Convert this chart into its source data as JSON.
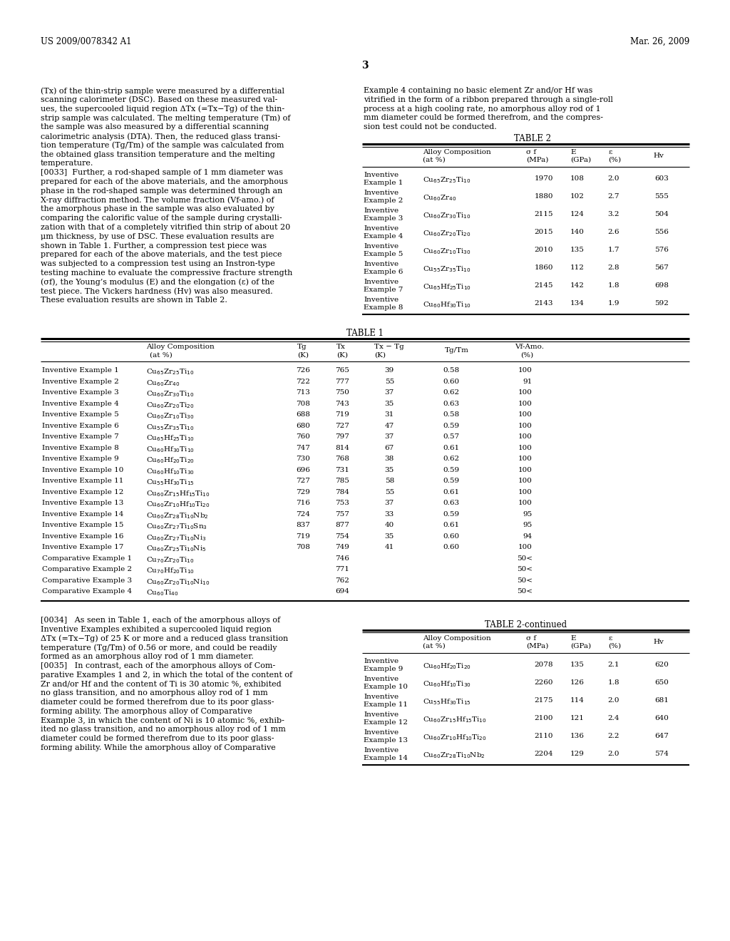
{
  "header_left": "US 2009/0078342 A1",
  "header_right": "Mar. 26, 2009",
  "page_number": "3",
  "background_color": "#ffffff",
  "left_column_text": [
    "(Tx) of the thin-strip sample were measured by a differential",
    "scanning calorimeter (DSC). Based on these measured val-",
    "ues, the supercooled liquid region ΔTx (=Tx−Tg) of the thin-",
    "strip sample was calculated. The melting temperature (Tm) of",
    "the sample was also measured by a differential scanning",
    "calorimetric analysis (DTA). Then, the reduced glass transi-",
    "tion temperature (Tg/Tm) of the sample was calculated from",
    "the obtained glass transition temperature and the melting",
    "temperature.",
    "[0033]  Further, a rod-shaped sample of 1 mm diameter was",
    "prepared for each of the above materials, and the amorphous",
    "phase in the rod-shaped sample was determined through an",
    "X-ray diffraction method. The volume fraction (Vf-amo.) of",
    "the amorphous phase in the sample was also evaluated by",
    "comparing the calorific value of the sample during crystalli-",
    "zation with that of a completely vitrified thin strip of about 20",
    "μm thickness, by use of DSC. These evaluation results are",
    "shown in Table 1. Further, a compression test piece was",
    "prepared for each of the above materials, and the test piece",
    "was subjected to a compression test using an Instron-type",
    "testing machine to evaluate the compressive fracture strength",
    "(σf), the Young’s modulus (E) and the elongation (ε) of the",
    "test piece. The Vickers hardness (Hv) was also measured.",
    "These evaluation results are shown in Table 2."
  ],
  "right_column_text": [
    "Example 4 containing no basic element Zr and/or Hf was",
    "vitrified in the form of a ribbon prepared through a single-roll",
    "process at a high cooling rate, no amorphous alloy rod of 1",
    "mm diameter could be formed therefrom, and the compres-",
    "sion test could not be conducted."
  ],
  "table2_title": "TABLE 2",
  "table2_rows": [
    [
      "Inventive",
      "Example 1",
      "Cu$_{65}$Zr$_{25}$Ti$_{10}$",
      "1970",
      "108",
      "2.0",
      "603"
    ],
    [
      "Inventive",
      "Example 2",
      "Cu$_{60}$Zr$_{40}$",
      "1880",
      "102",
      "2.7",
      "555"
    ],
    [
      "Inventive",
      "Example 3",
      "Cu$_{60}$Zr$_{30}$Ti$_{10}$",
      "2115",
      "124",
      "3.2",
      "504"
    ],
    [
      "Inventive",
      "Example 4",
      "Cu$_{60}$Zr$_{20}$Ti$_{20}$",
      "2015",
      "140",
      "2.6",
      "556"
    ],
    [
      "Inventive",
      "Example 5",
      "Cu$_{60}$Zr$_{10}$Ti$_{30}$",
      "2010",
      "135",
      "1.7",
      "576"
    ],
    [
      "Inventive",
      "Example 6",
      "Cu$_{55}$Zr$_{35}$Ti$_{10}$",
      "1860",
      "112",
      "2.8",
      "567"
    ],
    [
      "Inventive",
      "Example 7",
      "Cu$_{65}$Hf$_{25}$Ti$_{10}$",
      "2145",
      "142",
      "1.8",
      "698"
    ],
    [
      "Inventive",
      "Example 8",
      "Cu$_{60}$Hf$_{30}$Ti$_{10}$",
      "2143",
      "134",
      "1.9",
      "592"
    ]
  ],
  "table1_rows": [
    [
      "Inventive Example 1",
      "Cu$_{65}$Zr$_{25}$Ti$_{10}$",
      "726",
      "765",
      "39",
      "0.58",
      "100"
    ],
    [
      "Inventive Example 2",
      "Cu$_{60}$Zr$_{40}$",
      "722",
      "777",
      "55",
      "0.60",
      "91"
    ],
    [
      "Inventive Example 3",
      "Cu$_{60}$Zr$_{30}$Ti$_{10}$",
      "713",
      "750",
      "37",
      "0.62",
      "100"
    ],
    [
      "Inventive Example 4",
      "Cu$_{60}$Zr$_{20}$Ti$_{20}$",
      "708",
      "743",
      "35",
      "0.63",
      "100"
    ],
    [
      "Inventive Example 5",
      "Cu$_{60}$Zr$_{10}$Ti$_{30}$",
      "688",
      "719",
      "31",
      "0.58",
      "100"
    ],
    [
      "Inventive Example 6",
      "Cu$_{55}$Zr$_{35}$Ti$_{10}$",
      "680",
      "727",
      "47",
      "0.59",
      "100"
    ],
    [
      "Inventive Example 7",
      "Cu$_{65}$Hf$_{25}$Ti$_{10}$",
      "760",
      "797",
      "37",
      "0.57",
      "100"
    ],
    [
      "Inventive Example 8",
      "Cu$_{60}$Hf$_{30}$Ti$_{10}$",
      "747",
      "814",
      "67",
      "0.61",
      "100"
    ],
    [
      "Inventive Example 9",
      "Cu$_{60}$Hf$_{20}$Ti$_{20}$",
      "730",
      "768",
      "38",
      "0.62",
      "100"
    ],
    [
      "Inventive Example 10",
      "Cu$_{60}$Hf$_{10}$Ti$_{30}$",
      "696",
      "731",
      "35",
      "0.59",
      "100"
    ],
    [
      "Inventive Example 11",
      "Cu$_{55}$Hf$_{30}$Ti$_{15}$",
      "727",
      "785",
      "58",
      "0.59",
      "100"
    ],
    [
      "Inventive Example 12",
      "Cu$_{60}$Zr$_{15}$Hf$_{15}$Ti$_{10}$",
      "729",
      "784",
      "55",
      "0.61",
      "100"
    ],
    [
      "Inventive Example 13",
      "Cu$_{60}$Zr$_{10}$Hf$_{10}$Ti$_{20}$",
      "716",
      "753",
      "37",
      "0.63",
      "100"
    ],
    [
      "Inventive Example 14",
      "Cu$_{60}$Zr$_{28}$Ti$_{10}$Nb$_{2}$",
      "724",
      "757",
      "33",
      "0.59",
      "95"
    ],
    [
      "Inventive Example 15",
      "Cu$_{60}$Zr$_{27}$Ti$_{10}$Sn$_{3}$",
      "837",
      "877",
      "40",
      "0.61",
      "95"
    ],
    [
      "Inventive Example 16",
      "Cu$_{60}$Zr$_{27}$Ti$_{10}$Ni$_{3}$",
      "719",
      "754",
      "35",
      "0.60",
      "94"
    ],
    [
      "Inventive Example 17",
      "Cu$_{60}$Zr$_{25}$Ti$_{10}$Ni$_{5}$",
      "708",
      "749",
      "41",
      "0.60",
      "100"
    ],
    [
      "Comparative Example 1",
      "Cu$_{70}$Zr$_{20}$Ti$_{10}$",
      "",
      "746",
      "",
      "",
      "50<"
    ],
    [
      "Comparative Example 2",
      "Cu$_{70}$Hf$_{20}$Ti$_{10}$",
      "",
      "771",
      "",
      "",
      "50<"
    ],
    [
      "Comparative Example 3",
      "Cu$_{60}$Zr$_{20}$Ti$_{10}$Ni$_{10}$",
      "",
      "762",
      "",
      "",
      "50<"
    ],
    [
      "Comparative Example 4",
      "Cu$_{60}$Ti$_{40}$",
      "",
      "694",
      "",
      "",
      "50<"
    ]
  ],
  "bottom_left_text": [
    "[0034]   As seen in Table 1, each of the amorphous alloys of",
    "Inventive Examples exhibited a supercooled liquid region",
    "ΔTx (=Tx−Tg) of 25 K or more and a reduced glass transition",
    "temperature (Tg/Tm) of 0.56 or more, and could be readily",
    "formed as an amorphous alloy rod of 1 mm diameter.",
    "[0035]   In contrast, each of the amorphous alloys of Com-",
    "parative Examples 1 and 2, in which the total of the content of",
    "Zr and/or Hf and the content of Ti is 30 atomic %, exhibited",
    "no glass transition, and no amorphous alloy rod of 1 mm",
    "diameter could be formed therefrom due to its poor glass-",
    "forming ability. The amorphous alloy of Comparative",
    "Example 3, in which the content of Ni is 10 atomic %, exhib-",
    "ited no glass transition, and no amorphous alloy rod of 1 mm",
    "diameter could be formed therefrom due to its poor glass-",
    "forming ability. While the amorphous alloy of Comparative"
  ],
  "table2cont_title": "TABLE 2-continued",
  "table2cont_rows": [
    [
      "Inventive",
      "Example 9",
      "Cu$_{60}$Hf$_{20}$Ti$_{20}$",
      "2078",
      "135",
      "2.1",
      "620"
    ],
    [
      "Inventive",
      "Example 10",
      "Cu$_{60}$Hf$_{10}$Ti$_{30}$",
      "2260",
      "126",
      "1.8",
      "650"
    ],
    [
      "Inventive",
      "Example 11",
      "Cu$_{55}$Hf$_{30}$Ti$_{15}$",
      "2175",
      "114",
      "2.0",
      "681"
    ],
    [
      "Inventive",
      "Example 12",
      "Cu$_{60}$Zr$_{15}$Hf$_{15}$Ti$_{10}$",
      "2100",
      "121",
      "2.4",
      "640"
    ],
    [
      "Inventive",
      "Example 13",
      "Cu$_{60}$Zr$_{10}$Hf$_{10}$Ti$_{20}$",
      "2110",
      "136",
      "2.2",
      "647"
    ],
    [
      "Inventive",
      "Example 14",
      "Cu$_{60}$Zr$_{28}$Ti$_{10}$Nb$_{2}$",
      "2204",
      "129",
      "2.0",
      "574"
    ]
  ]
}
